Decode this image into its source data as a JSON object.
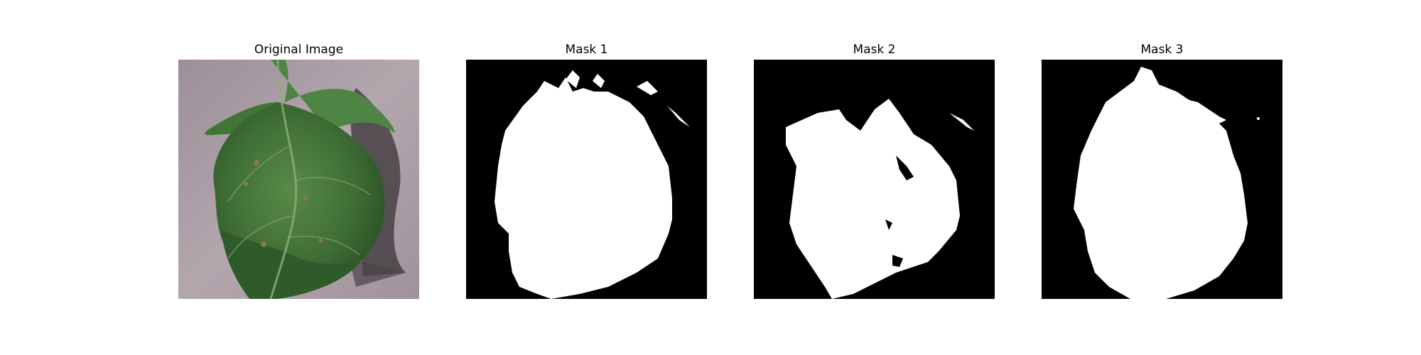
{
  "figure": {
    "panels": [
      {
        "title": "Original Image",
        "kind": "photo",
        "image": "tomato-leaf-photo"
      },
      {
        "title": "Mask 1",
        "kind": "mask",
        "image": "segmentation-mask"
      },
      {
        "title": "Mask 2",
        "kind": "mask",
        "image": "segmentation-mask"
      },
      {
        "title": "Mask 3",
        "kind": "mask",
        "image": "segmentation-mask"
      }
    ],
    "colors": {
      "background": "#ffffff",
      "mask_background": "#000000",
      "mask_foreground": "#ffffff",
      "photo_background": "#a89aa2",
      "leaf_dark": "#2e5a2a",
      "leaf_mid": "#4a7d3e",
      "leaf_light": "#6f9c5a",
      "vein": "#9fb98a"
    }
  }
}
